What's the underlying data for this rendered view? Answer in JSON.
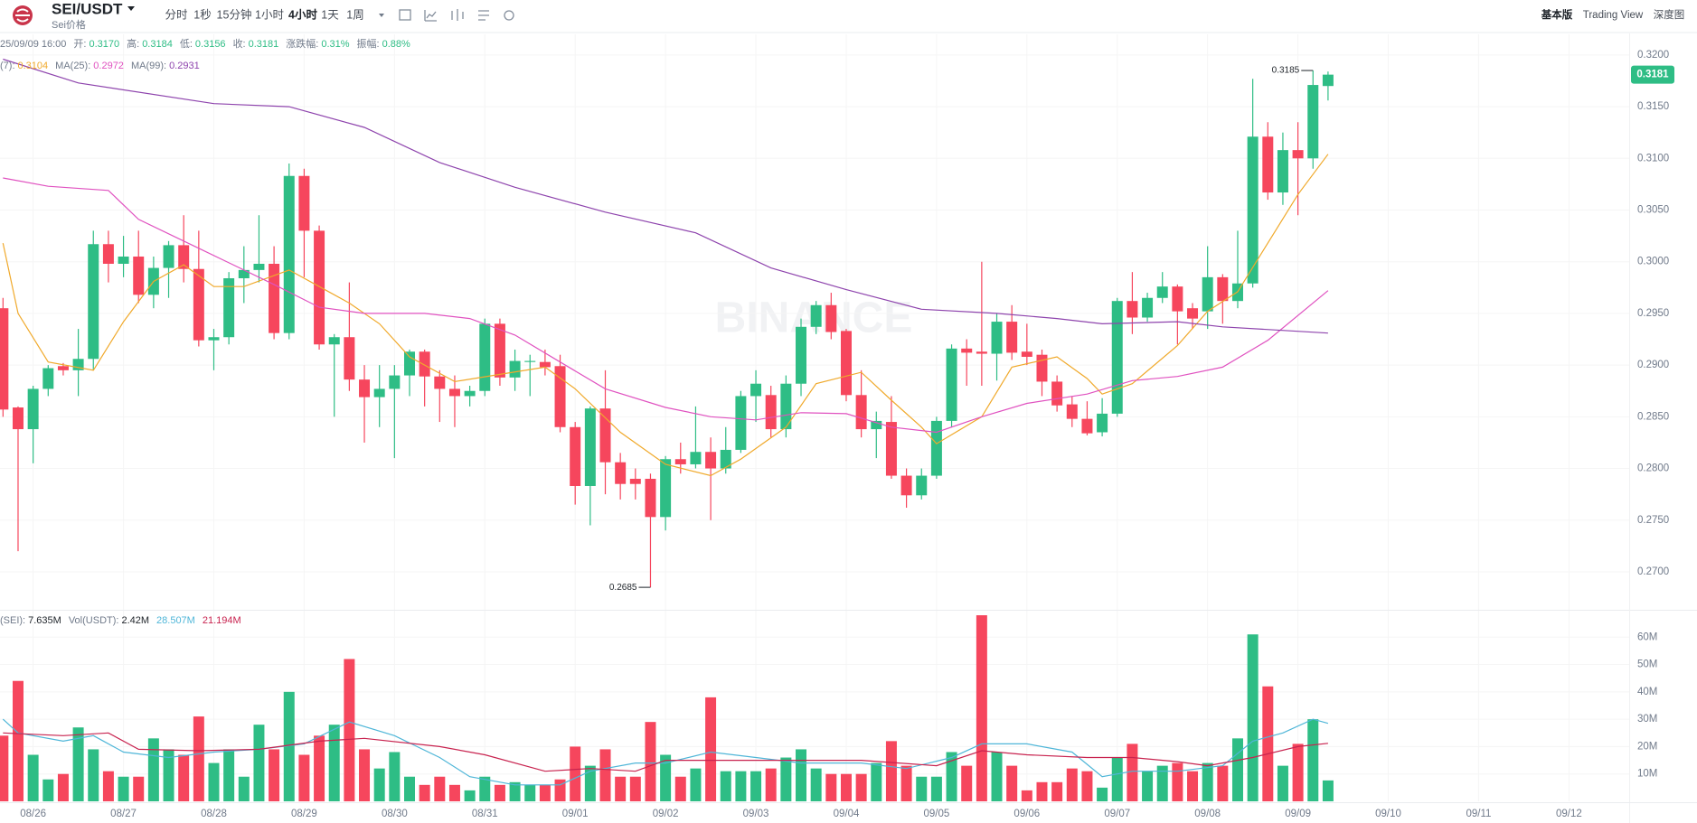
{
  "header": {
    "pair": "SEI/USDT",
    "subtitle": "Sei价格",
    "intervals": [
      "分时",
      "1秒",
      "15分钟",
      "1小时",
      "4小时",
      "1天",
      "1周"
    ],
    "active_interval": "4小时",
    "views": [
      "基本版",
      "Trading View",
      "深度图"
    ],
    "active_view": "基本版",
    "watermark": "BINANCE"
  },
  "info": {
    "time": "25/09/09 16:00",
    "fields": [
      {
        "label": "开:",
        "value": "0.3170"
      },
      {
        "label": "高:",
        "value": "0.3184"
      },
      {
        "label": "低:",
        "value": "0.3156"
      },
      {
        "label": "收:",
        "value": "0.3181"
      },
      {
        "label": "涨跌幅:",
        "value": "0.31%"
      },
      {
        "label": "振幅:",
        "value": "0.88%"
      }
    ]
  },
  "chart_data": {
    "type": "candlestick",
    "xlim": [
      -0.2,
      108
    ],
    "xticks": [
      {
        "value": 2,
        "label": "08/26"
      },
      {
        "value": 8,
        "label": "08/27"
      },
      {
        "value": 14,
        "label": "08/28"
      },
      {
        "value": 20,
        "label": "08/29"
      },
      {
        "value": 26,
        "label": "08/30"
      },
      {
        "value": 32,
        "label": "08/31"
      },
      {
        "value": 38,
        "label": "09/01"
      },
      {
        "value": 44,
        "label": "09/02"
      },
      {
        "value": 50,
        "label": "09/03"
      },
      {
        "value": 56,
        "label": "09/04"
      },
      {
        "value": 62,
        "label": "09/05"
      },
      {
        "value": 68,
        "label": "09/06"
      },
      {
        "value": 74,
        "label": "09/07"
      },
      {
        "value": 80,
        "label": "09/08"
      },
      {
        "value": 86,
        "label": "09/09"
      },
      {
        "value": 92,
        "label": "09/10"
      },
      {
        "value": 98,
        "label": "09/11"
      },
      {
        "value": 104,
        "label": "09/12"
      }
    ],
    "ylim": [
      0.2665,
      0.322
    ],
    "yticks": [
      {
        "value": 0.27,
        "label": "0.2700"
      },
      {
        "value": 0.275,
        "label": "0.2750"
      },
      {
        "value": 0.28,
        "label": "0.2800"
      },
      {
        "value": 0.285,
        "label": "0.2850"
      },
      {
        "value": 0.29,
        "label": "0.2900"
      },
      {
        "value": 0.295,
        "label": "0.2950"
      },
      {
        "value": 0.3,
        "label": "0.3000"
      },
      {
        "value": 0.305,
        "label": "0.3050"
      },
      {
        "value": 0.31,
        "label": "0.3100"
      },
      {
        "value": 0.315,
        "label": "0.3150"
      },
      {
        "value": 0.32,
        "label": "0.3200"
      }
    ],
    "grid": true,
    "up_color": "#2ebd85",
    "down_color": "#f6465d",
    "open": [
      0.2955,
      0.2859,
      0.2838,
      0.2877,
      0.2899,
      0.2895,
      0.2906,
      0.3017,
      0.2998,
      0.3005,
      0.2968,
      0.2994,
      0.3016,
      0.2993,
      0.2924,
      0.2927,
      0.2984,
      0.2992,
      0.2998,
      0.2931,
      0.3083,
      0.303,
      0.292,
      0.2927,
      0.2886,
      0.2869,
      0.2877,
      0.289,
      0.2913,
      0.2889,
      0.2877,
      0.287,
      0.2875,
      0.294,
      0.2888,
      0.2903,
      0.2903,
      0.2899,
      0.284,
      0.2783,
      0.2858,
      0.2806,
      0.279,
      0.279,
      0.2753,
      0.2809,
      0.2804,
      0.2816,
      0.28,
      0.2818,
      0.287,
      0.2871,
      0.2838,
      0.2882,
      0.2937,
      0.2958,
      0.2933,
      0.2871,
      0.2838,
      0.2845,
      0.2793,
      0.2774,
      0.2793,
      0.2846,
      0.2916,
      0.2913,
      0.2911,
      0.2942,
      0.2913,
      0.291,
      0.2884,
      0.2862,
      0.2848,
      0.2835,
      0.2853,
      0.2962,
      0.2946,
      0.2965,
      0.2976,
      0.2955,
      0.2952,
      0.2985,
      0.2962,
      0.2979,
      0.3121,
      0.3067,
      0.3108,
      0.31,
      0.317
    ],
    "high": [
      0.2965,
      0.286,
      0.288,
      0.29,
      0.2902,
      0.2935,
      0.303,
      0.303,
      0.3025,
      0.303,
      0.3005,
      0.302,
      0.3045,
      0.303,
      0.2935,
      0.299,
      0.3015,
      0.3045,
      0.3015,
      0.3095,
      0.309,
      0.3035,
      0.293,
      0.298,
      0.29,
      0.29,
      0.29,
      0.2915,
      0.2915,
      0.2895,
      0.289,
      0.288,
      0.2945,
      0.2945,
      0.2915,
      0.291,
      0.2915,
      0.291,
      0.2845,
      0.286,
      0.2895,
      0.2815,
      0.28,
      0.2795,
      0.2812,
      0.2825,
      0.286,
      0.283,
      0.284,
      0.2875,
      0.2895,
      0.288,
      0.289,
      0.2945,
      0.2962,
      0.297,
      0.2935,
      0.2895,
      0.2855,
      0.287,
      0.28,
      0.28,
      0.285,
      0.292,
      0.2925,
      0.3,
      0.295,
      0.2958,
      0.294,
      0.2915,
      0.289,
      0.287,
      0.2865,
      0.2868,
      0.2965,
      0.299,
      0.297,
      0.299,
      0.2978,
      0.296,
      0.3015,
      0.2988,
      0.303,
      0.3177,
      0.3135,
      0.3125,
      0.3135,
      0.3185,
      0.3184
    ],
    "low": [
      0.285,
      0.272,
      0.2805,
      0.287,
      0.289,
      0.287,
      0.2895,
      0.298,
      0.2985,
      0.296,
      0.2955,
      0.2965,
      0.298,
      0.2918,
      0.2895,
      0.292,
      0.296,
      0.298,
      0.2925,
      0.2925,
      0.2985,
      0.2915,
      0.285,
      0.2875,
      0.2825,
      0.284,
      0.281,
      0.287,
      0.286,
      0.2845,
      0.284,
      0.286,
      0.287,
      0.288,
      0.2875,
      0.287,
      0.289,
      0.2835,
      0.2765,
      0.2745,
      0.2775,
      0.277,
      0.277,
      0.2685,
      0.274,
      0.2795,
      0.28,
      0.275,
      0.2795,
      0.2815,
      0.2845,
      0.283,
      0.283,
      0.287,
      0.293,
      0.2925,
      0.2865,
      0.283,
      0.281,
      0.279,
      0.2762,
      0.277,
      0.279,
      0.284,
      0.288,
      0.288,
      0.2885,
      0.2905,
      0.29,
      0.287,
      0.2855,
      0.284,
      0.2832,
      0.2831,
      0.285,
      0.293,
      0.2942,
      0.296,
      0.292,
      0.2935,
      0.2935,
      0.294,
      0.2955,
      0.2975,
      0.306,
      0.3055,
      0.3045,
      0.309,
      0.3156
    ],
    "close": [
      0.2857,
      0.2838,
      0.2877,
      0.2897,
      0.2895,
      0.2906,
      0.3017,
      0.2998,
      0.3005,
      0.2968,
      0.2994,
      0.3016,
      0.2993,
      0.2924,
      0.2927,
      0.2984,
      0.2992,
      0.2998,
      0.2931,
      0.3083,
      0.303,
      0.292,
      0.2927,
      0.2886,
      0.2869,
      0.2877,
      0.289,
      0.2913,
      0.2889,
      0.2877,
      0.287,
      0.2875,
      0.294,
      0.2888,
      0.2904,
      0.2904,
      0.2898,
      0.284,
      0.2783,
      0.2858,
      0.2806,
      0.2785,
      0.2785,
      0.2753,
      0.2809,
      0.2804,
      0.2816,
      0.28,
      0.2818,
      0.287,
      0.2882,
      0.2838,
      0.2882,
      0.2937,
      0.2958,
      0.2932,
      0.2871,
      0.2838,
      0.2846,
      0.2793,
      0.2774,
      0.2793,
      0.2846,
      0.2916,
      0.2912,
      0.2911,
      0.2942,
      0.2912,
      0.2908,
      0.2884,
      0.2861,
      0.2848,
      0.2834,
      0.2853,
      0.2962,
      0.2946,
      0.2965,
      0.2976,
      0.2952,
      0.2945,
      0.2985,
      0.2962,
      0.2979,
      0.3121,
      0.3067,
      0.3108,
      0.31,
      0.3171,
      0.3181
    ],
    "ma": [
      {
        "name": "(7):",
        "color": "#f0a92b",
        "x": [
          0,
          1,
          3,
          6,
          8,
          10,
          12,
          14,
          16,
          19,
          21,
          23,
          25,
          27,
          30,
          33,
          36,
          38,
          41,
          44,
          47,
          49,
          52,
          54,
          57,
          59,
          61,
          62,
          65,
          67,
          70,
          72,
          73,
          75,
          78,
          80,
          82,
          84,
          86,
          88
        ],
        "values": [
          0.3018,
          0.295,
          0.2903,
          0.2895,
          0.2942,
          0.2981,
          0.2997,
          0.2976,
          0.2976,
          0.2992,
          0.2976,
          0.296,
          0.294,
          0.2908,
          0.2884,
          0.2891,
          0.2898,
          0.2877,
          0.2835,
          0.2804,
          0.2793,
          0.2809,
          0.284,
          0.2882,
          0.2893,
          0.2866,
          0.284,
          0.2824,
          0.285,
          0.2898,
          0.2908,
          0.2887,
          0.2872,
          0.2882,
          0.2919,
          0.2952,
          0.2971,
          0.3018,
          0.3065,
          0.3104
        ]
      },
      {
        "name": "MA(25):",
        "color": "#e052c0",
        "x": [
          0,
          3,
          7,
          9,
          13,
          18,
          21,
          24,
          28,
          31,
          34,
          37,
          40,
          44,
          47,
          50,
          53,
          56,
          59,
          62,
          65,
          68,
          72,
          75,
          78,
          81,
          84,
          88
        ],
        "values": [
          0.3081,
          0.3073,
          0.3069,
          0.3041,
          0.3013,
          0.2978,
          0.2956,
          0.295,
          0.295,
          0.2945,
          0.2929,
          0.2903,
          0.2877,
          0.2859,
          0.285,
          0.2847,
          0.2854,
          0.2853,
          0.284,
          0.2835,
          0.285,
          0.2863,
          0.2872,
          0.2885,
          0.2889,
          0.2898,
          0.2924,
          0.2972
        ]
      },
      {
        "name": "MA(99):",
        "color": "#8e44ad",
        "x": [
          0,
          5,
          14,
          19,
          24,
          29,
          34,
          40,
          46,
          51,
          56,
          61,
          66,
          70,
          73,
          78,
          81,
          88
        ],
        "values": [
          0.3196,
          0.3173,
          0.3153,
          0.315,
          0.313,
          0.3096,
          0.3072,
          0.3048,
          0.3028,
          0.2994,
          0.2973,
          0.2954,
          0.295,
          0.2945,
          0.294,
          0.2942,
          0.2937,
          0.2931
        ]
      }
    ],
    "volume": {
      "ylim": [
        0,
        69
      ],
      "yticks": [
        {
          "value": 10,
          "label": "10M"
        },
        {
          "value": 20,
          "label": "20M"
        },
        {
          "value": 30,
          "label": "30M"
        },
        {
          "value": 40,
          "label": "40M"
        },
        {
          "value": 50,
          "label": "50M"
        },
        {
          "value": 60,
          "label": "60M"
        }
      ],
      "values": [
        24,
        44,
        17,
        8,
        10,
        27,
        19,
        11,
        9,
        9,
        23,
        19,
        17,
        31,
        14,
        19,
        9,
        28,
        19,
        40,
        17,
        24,
        28,
        52,
        19,
        12,
        18,
        9,
        6,
        9,
        6,
        4,
        9,
        6,
        7,
        6,
        6,
        8,
        20,
        13,
        19,
        9,
        9,
        29,
        17,
        9,
        12,
        38,
        11,
        11,
        11,
        12,
        16,
        19,
        12,
        10,
        10,
        10,
        14,
        22,
        13,
        9,
        9,
        18,
        13,
        68,
        18,
        13,
        4,
        7,
        7,
        12,
        11,
        5,
        16,
        21,
        11,
        13,
        14,
        11,
        14,
        13,
        23,
        61,
        42,
        13,
        21,
        30,
        7.635
      ],
      "legend": [
        {
          "label": "(SEI):",
          "value": "7.635M"
        },
        {
          "label": "Vol(USDT):",
          "value": "2.42M"
        }
      ],
      "ma": [
        {
          "color": "#4fb6d8",
          "label": "28.507M",
          "x": [
            0,
            1,
            4,
            6,
            8,
            11,
            14,
            17,
            20,
            23,
            26,
            29,
            31,
            34,
            37,
            39,
            42,
            44,
            47,
            50,
            53,
            57,
            60,
            63,
            65,
            68,
            71,
            73,
            75,
            78,
            81,
            83,
            85,
            87,
            88
          ],
          "values": [
            30,
            25,
            22,
            24,
            18,
            16,
            18,
            19,
            21,
            29,
            24,
            16,
            9,
            6,
            6,
            11,
            14,
            14,
            18,
            16,
            14,
            14,
            12,
            16,
            21,
            21,
            18,
            9,
            11,
            11,
            13,
            22,
            25,
            30,
            28.507
          ]
        },
        {
          "color": "#c8234f",
          "label": "21.194M",
          "x": [
            0,
            4,
            7,
            9,
            13,
            17,
            21,
            24,
            29,
            32,
            36,
            39,
            42,
            44,
            49,
            53,
            57,
            62,
            65,
            68,
            72,
            75,
            78,
            80,
            83,
            86,
            88
          ],
          "values": [
            25,
            24,
            25,
            19,
            18.5,
            19,
            22,
            23,
            20,
            17,
            11,
            12,
            11,
            15,
            15,
            15,
            15,
            13,
            18.5,
            17,
            16,
            16,
            14.5,
            13,
            16,
            20,
            21.194
          ]
        }
      ]
    }
  }
}
